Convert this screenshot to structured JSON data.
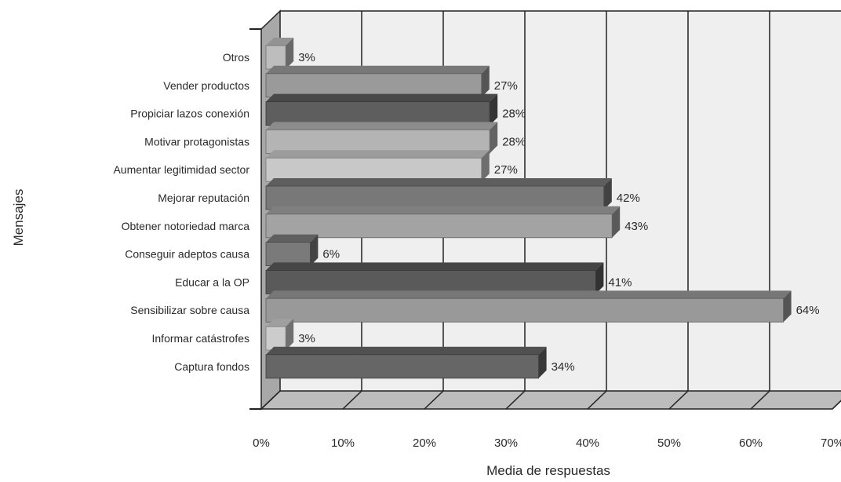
{
  "chart_data": {
    "type": "bar",
    "orientation": "horizontal",
    "three_d": true,
    "categories": [
      "Otros",
      "Vender productos",
      "Propiciar lazos conexión",
      "Motivar protagonistas",
      "Aumentar legitimidad sector",
      "Mejorar reputación",
      "Obtener notoriedad marca",
      "Conseguir adeptos causa",
      "Educar a la OP",
      "Sensibilizar sobre causa",
      "Informar catástrofes",
      "Captura fondos"
    ],
    "values": [
      3,
      27,
      28,
      28,
      27,
      42,
      43,
      6,
      41,
      64,
      3,
      34
    ],
    "data_labels": [
      "3%",
      "27%",
      "28%",
      "28%",
      "27%",
      "42%",
      "43%",
      "6%",
      "41%",
      "64%",
      "3%",
      "34%"
    ],
    "bar_colors": [
      "#bdbdbd",
      "#9a9a9a",
      "#5e5e5e",
      "#b4b4b4",
      "#c8c8c8",
      "#787878",
      "#a3a3a3",
      "#7a7a7a",
      "#5a5a5a",
      "#999999",
      "#cccccc",
      "#666666"
    ],
    "x_ticks": [
      "0%",
      "10%",
      "20%",
      "30%",
      "40%",
      "50%",
      "60%",
      "70%"
    ],
    "xlim": [
      0,
      70
    ],
    "xlabel": "Media de respuestas",
    "ylabel": "Mensajes",
    "grid": true,
    "colors": {
      "wall": "#efefef",
      "floor": "#bdbdbd",
      "side_wall": "#a8a8a8",
      "grid": "#222222"
    }
  }
}
